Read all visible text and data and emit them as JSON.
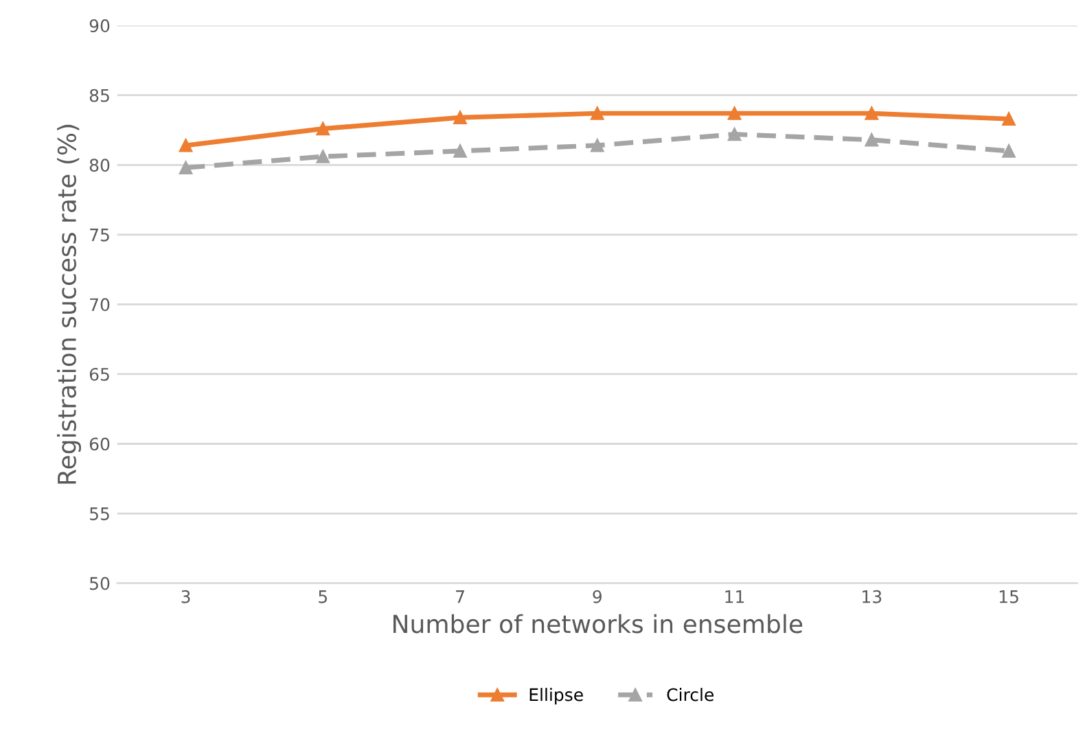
{
  "chart_data": {
    "type": "line",
    "xlabel": "Number of networks in ensemble",
    "ylabel": "Registration success rate (%)",
    "categories": [
      "3",
      "5",
      "7",
      "9",
      "11",
      "13",
      "15"
    ],
    "series": [
      {
        "name": "Ellipse",
        "color": "#ed7d31",
        "values": [
          81.4,
          82.6,
          83.4,
          83.7,
          83.7,
          83.7,
          83.3
        ],
        "line_style": "solid"
      },
      {
        "name": "Circle",
        "color": "#a5a5a5",
        "values": [
          79.8,
          80.6,
          81.0,
          81.4,
          82.2,
          81.8,
          81.0
        ],
        "line_style": "dashed"
      }
    ],
    "ylim": [
      50,
      90
    ],
    "yticks": [
      50,
      55,
      60,
      65,
      70,
      75,
      80,
      85,
      90
    ],
    "grid": "y",
    "legend": "bottom",
    "marker": "triangle"
  }
}
